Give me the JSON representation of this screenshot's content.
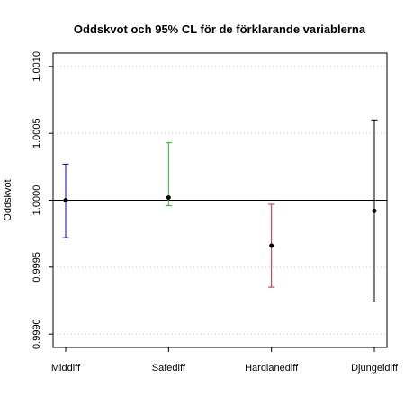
{
  "chart_data": {
    "type": "errorbar",
    "title": "Oddskvot och 95% CL för de förklarande variablerna",
    "xlabel": "",
    "ylabel": "Oddskvot",
    "categories": [
      "Middiff",
      "Safediff",
      "Hardlanediff",
      "Djungeldiff"
    ],
    "estimates": [
      1.0,
      1.00002,
      0.99966,
      0.99992
    ],
    "lower": [
      0.99972,
      0.99996,
      0.99935,
      0.99924
    ],
    "upper": [
      1.00027,
      1.00043,
      0.99997,
      1.0006
    ],
    "colors": [
      "#0000cc",
      "#22bb22",
      "#cc2233",
      "#000000"
    ],
    "ylim": [
      0.9989,
      1.0011
    ],
    "yticks": [
      0.999,
      0.9995,
      1.0,
      1.0005,
      1.001
    ],
    "ytick_labels": [
      "0.9990",
      "0.9995",
      "1.0000",
      "1.0005",
      "1.0010"
    ],
    "reference_line": 1.0,
    "grid": "horizontal dotted"
  }
}
